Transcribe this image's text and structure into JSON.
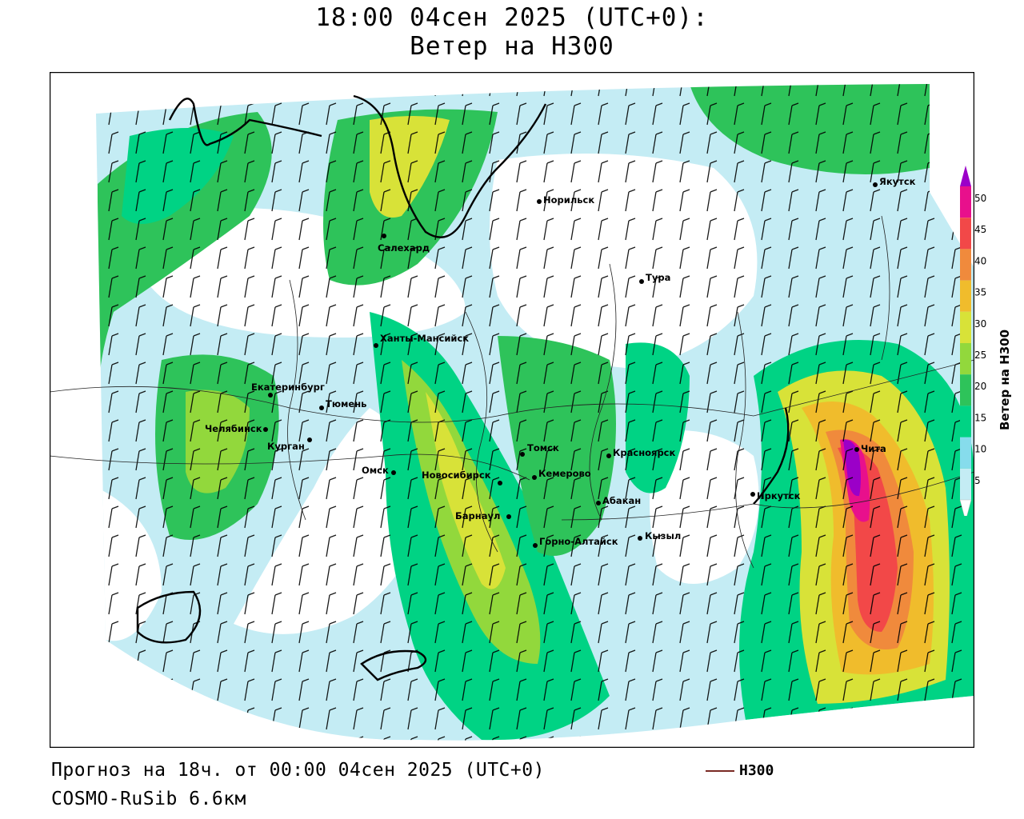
{
  "header": {
    "line1": "18:00 04сен 2025 (UTC+0):",
    "line2": "Ветер на H300"
  },
  "footer": {
    "forecast": "Прогноз на 18ч. от 00:00 04сен 2025 (UTC+0)",
    "model": "COSMO-RuSib 6.6км",
    "legend_label": "H300",
    "legend_color": "#7a2a24"
  },
  "colorbar": {
    "title": "Ветер на H300",
    "ticks": [
      "5",
      "10",
      "15",
      "20",
      "25",
      "30",
      "35",
      "40",
      "45",
      "50"
    ],
    "colors": [
      "#ffffff",
      "#c4ecf4",
      "#86dcec",
      "#00d384",
      "#2ec35a",
      "#92d83c",
      "#d8e238",
      "#f0bc2c",
      "#f08a3c",
      "#f24848",
      "#e8108c",
      "#9b00c8"
    ]
  },
  "cities": [
    {
      "name": "Якутск"
    },
    {
      "name": "Норильск"
    },
    {
      "name": "Салехард"
    },
    {
      "name": "Тура"
    },
    {
      "name": "Ханты-Мансийск"
    },
    {
      "name": "Екатеринбург"
    },
    {
      "name": "Тюмень"
    },
    {
      "name": "Челябинск"
    },
    {
      "name": "Курган"
    },
    {
      "name": "Омск"
    },
    {
      "name": "Новосибирск"
    },
    {
      "name": "Томск"
    },
    {
      "name": "Кемерово"
    },
    {
      "name": "Красноярск"
    },
    {
      "name": "Абакан"
    },
    {
      "name": "Барнаул"
    },
    {
      "name": "Кызыл"
    },
    {
      "name": "Горно-Алтайск"
    },
    {
      "name": "Иркутск"
    },
    {
      "name": "Чита"
    }
  ]
}
